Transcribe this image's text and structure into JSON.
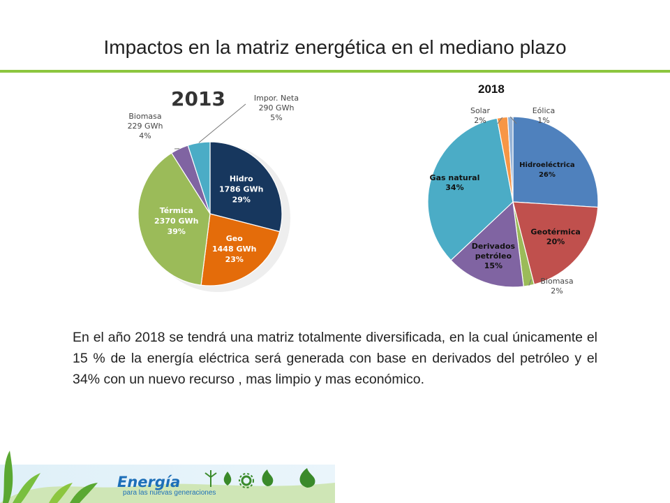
{
  "slide": {
    "title": "Impactos en la matriz energética en el mediano plazo",
    "body": "En el año 2018 se tendrá una matriz totalmente diversificada, en la cual únicamente el 15 % de la energía eléctrica será generada con base en derivados del petróleo y el 34% con un nuevo recurso , mas limpio y mas económico.",
    "footer": {
      "brand": "Energía",
      "tagline": "para las nuevas generaciones"
    },
    "accent_color": "#8cc63f"
  },
  "chart_data": [
    {
      "type": "pie",
      "title": "2013",
      "slices": [
        {
          "name": "Hidro",
          "gwh": "1786 GWh",
          "value": 29,
          "pct": "29%",
          "color": "#17375e"
        },
        {
          "name": "Geo",
          "gwh": "1448 GWh",
          "value": 23,
          "pct": "23%",
          "color": "#e46c0a"
        },
        {
          "name": "Térmica",
          "gwh": "2370 GWh",
          "value": 39,
          "pct": "39%",
          "color": "#9bbb59"
        },
        {
          "name": "Biomasa",
          "gwh": "229 GWh",
          "value": 4,
          "pct": "4%",
          "color": "#8064a2"
        },
        {
          "name": "Impor. Neta",
          "gwh": "290 GWh",
          "value": 5,
          "pct": "5%",
          "color": "#4bacc6"
        }
      ]
    },
    {
      "type": "pie",
      "title": "2018",
      "slices": [
        {
          "name": "Hidroeléctrica",
          "value": 26,
          "pct": "26%",
          "color": "#4f81bd"
        },
        {
          "name": "Geotérmica",
          "value": 20,
          "pct": "20%",
          "color": "#c0504d"
        },
        {
          "name": "Biomasa",
          "value": 2,
          "pct": "2%",
          "color": "#9bbb59"
        },
        {
          "name": "Derivados petróleo",
          "value": 15,
          "pct": "15%",
          "color": "#8064a2"
        },
        {
          "name": "Gas natural",
          "value": 34,
          "pct": "34%",
          "color": "#4bacc6"
        },
        {
          "name": "Solar",
          "value": 2,
          "pct": "2%",
          "color": "#f79646"
        },
        {
          "name": "Eólica",
          "value": 1,
          "pct": "1%",
          "color": "#95b3d7"
        }
      ]
    }
  ]
}
